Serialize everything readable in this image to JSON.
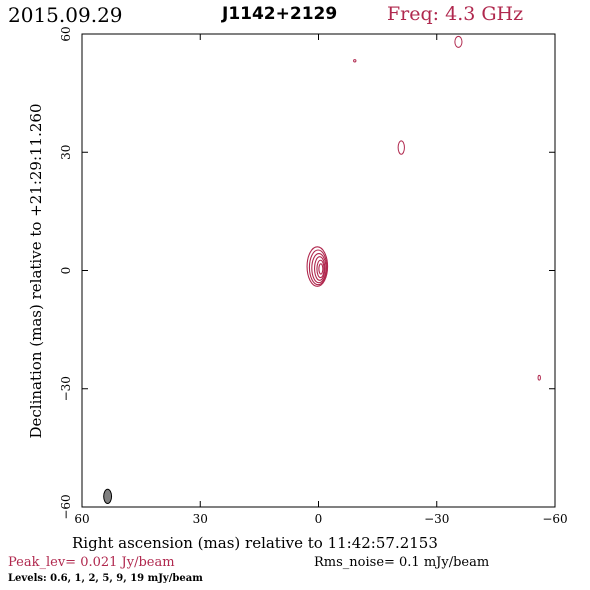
{
  "header": {
    "date": "2015.09.29",
    "source": "J1142+2129",
    "freq": "Freq: 4.3 GHz",
    "freq_color": "#b0284e"
  },
  "footer": {
    "peak": "Peak_lev=  0.021 Jy/beam",
    "rms": "Rms_noise=  0.1 mJy/beam",
    "levels": "Levels: 0.6,   1,   2,   5,   9,  19 mJy/beam"
  },
  "chart_data": {
    "type": "contour",
    "xlabel": "Right ascension (mas) relative to 11:42:57.2153",
    "ylabel": "Declination (mas) relative to +21:29:11.260",
    "xlim": [
      60,
      -60
    ],
    "ylim": [
      -60,
      60
    ],
    "x_ticks": [
      60,
      30,
      0,
      -30,
      -60
    ],
    "x_tick_labels": [
      "60",
      "30",
      "0",
      "−30",
      "−60"
    ],
    "y_ticks": [
      -60,
      -30,
      0,
      30,
      60
    ],
    "y_tick_labels": [
      "−60",
      "−30",
      "0",
      "30",
      "60"
    ],
    "contour_levels_mJy": [
      0.6,
      1,
      2,
      5,
      9,
      19
    ],
    "contour_color": "#b0284e",
    "core": {
      "center": [
        0,
        1
      ],
      "rings": [
        {
          "rx": 2.6,
          "ry": 5.0,
          "cx": 0.3,
          "cy": 1.0
        },
        {
          "rx": 2.2,
          "ry": 4.4,
          "cx": 0.1,
          "cy": 0.8
        },
        {
          "rx": 1.8,
          "ry": 3.7,
          "cx": -0.1,
          "cy": 0.6
        },
        {
          "rx": 1.3,
          "ry": 3.0,
          "cx": -0.3,
          "cy": 0.5
        },
        {
          "rx": 0.9,
          "ry": 2.2,
          "cx": -0.5,
          "cy": 0.4
        },
        {
          "rx": 0.5,
          "ry": 1.3,
          "cx": -0.6,
          "cy": 0.4
        }
      ]
    },
    "blobs": [
      {
        "x": -35.5,
        "y": 58.0,
        "rx": 0.9,
        "ry": 1.4
      },
      {
        "x": -9.2,
        "y": 53.2,
        "rx": 0.3,
        "ry": 0.3
      },
      {
        "x": -21.0,
        "y": 31.2,
        "rx": 0.8,
        "ry": 1.7
      },
      {
        "x": -56.0,
        "y": -27.2,
        "rx": 0.3,
        "ry": 0.6
      }
    ],
    "beam": {
      "x": 53.5,
      "y": -57.3,
      "rx": 1.0,
      "ry": 1.8,
      "color": "#808080"
    }
  }
}
